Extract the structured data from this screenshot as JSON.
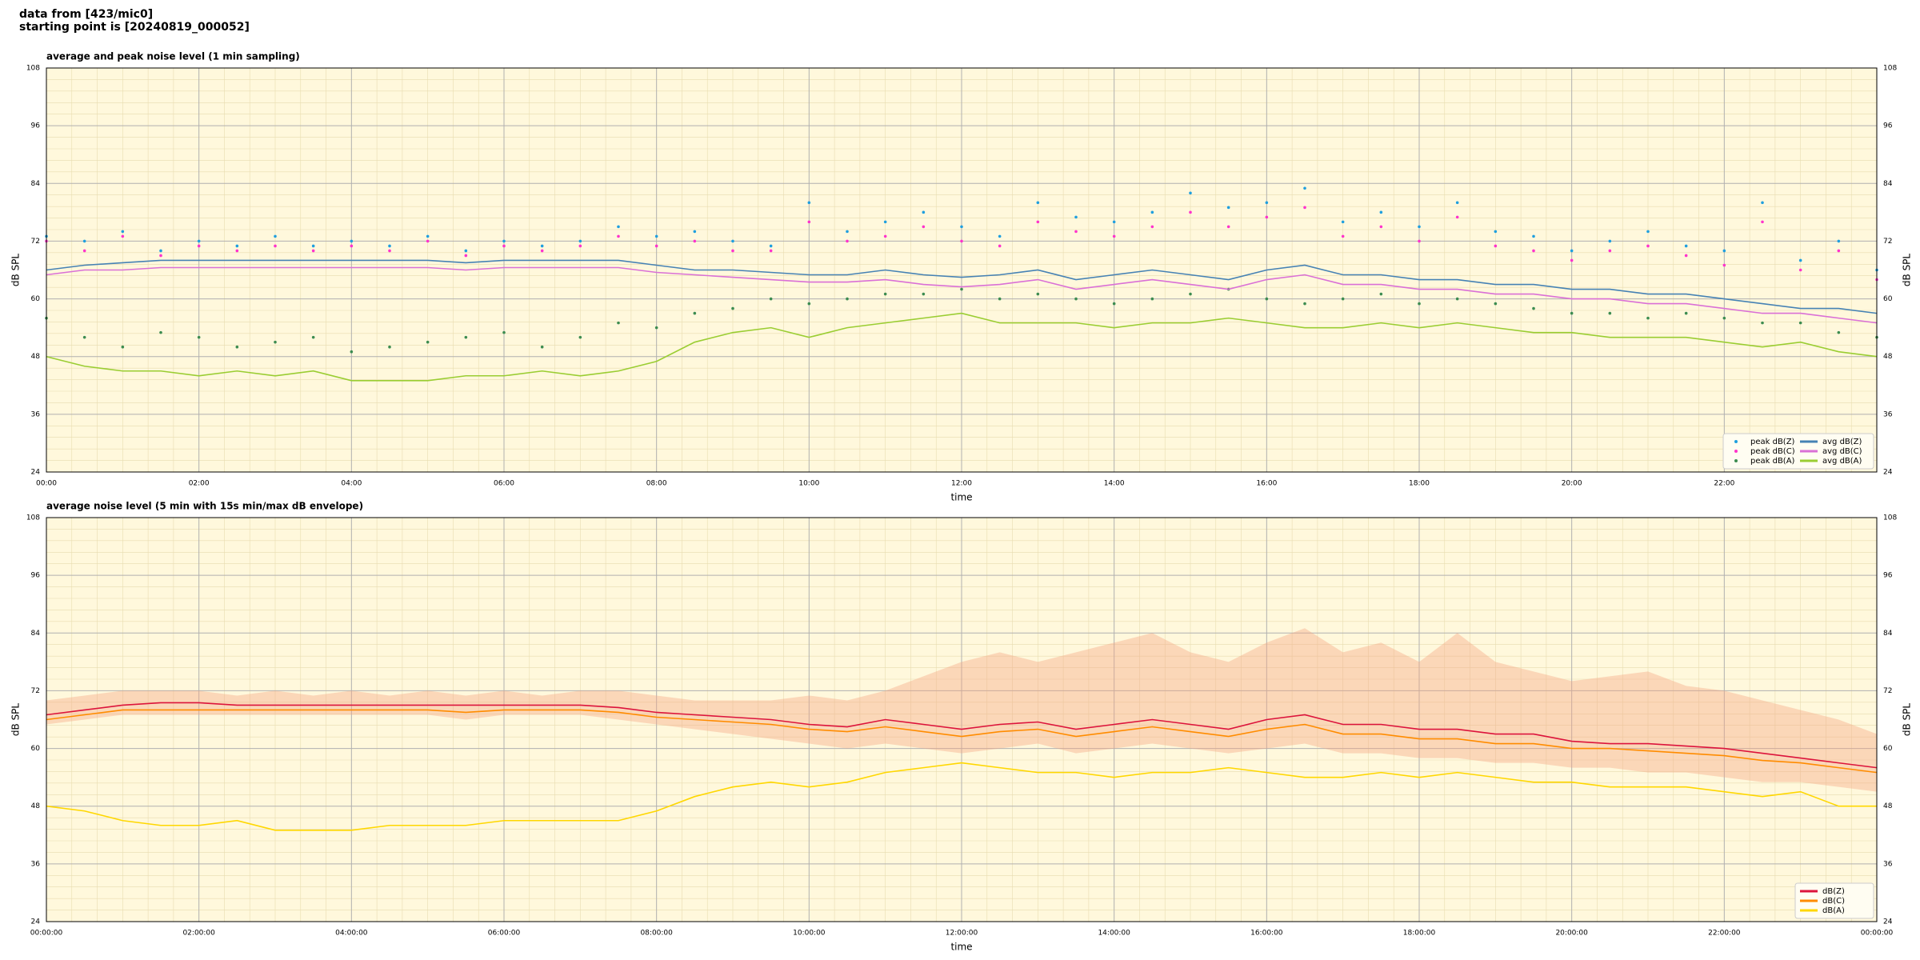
{
  "header": {
    "line1": "data from [423/mic0]",
    "line2": "starting point is [20240819_000052]"
  },
  "chart_data": [
    {
      "type": "line",
      "title": "average and peak noise level (1 min sampling)",
      "xlabel": "time",
      "ylabel": "dB SPL",
      "xlim": [
        0,
        24
      ],
      "ylim": [
        24,
        108
      ],
      "yticks": [
        24,
        36,
        48,
        60,
        72,
        84,
        96,
        108
      ],
      "xticks": [
        {
          "value": 0,
          "label": "00:00"
        },
        {
          "value": 2,
          "label": "02:00"
        },
        {
          "value": 4,
          "label": "04:00"
        },
        {
          "value": 6,
          "label": "06:00"
        },
        {
          "value": 8,
          "label": "08:00"
        },
        {
          "value": 10,
          "label": "10:00"
        },
        {
          "value": 12,
          "label": "12:00"
        },
        {
          "value": 14,
          "label": "14:00"
        },
        {
          "value": 16,
          "label": "16:00"
        },
        {
          "value": 18,
          "label": "18:00"
        },
        {
          "value": 20,
          "label": "20:00"
        },
        {
          "value": 22,
          "label": "22:00"
        }
      ],
      "grid": true,
      "legend": "lower right",
      "legend_columns": 2,
      "background": "#fff8dc",
      "x": [
        0,
        0.5,
        1,
        1.5,
        2,
        2.5,
        3,
        3.5,
        4,
        4.5,
        5,
        5.5,
        6,
        6.5,
        7,
        7.5,
        8,
        8.5,
        9,
        9.5,
        10,
        10.5,
        11,
        11.5,
        12,
        12.5,
        13,
        13.5,
        14,
        14.5,
        15,
        15.5,
        16,
        16.5,
        17,
        17.5,
        18,
        18.5,
        19,
        19.5,
        20,
        20.5,
        21,
        21.5,
        22,
        22.5,
        23,
        23.5,
        24
      ],
      "series": [
        {
          "name": "peak dB(Z)",
          "type": "scatter",
          "color": "#1f9fdf",
          "values": [
            73,
            72,
            74,
            70,
            72,
            71,
            73,
            71,
            72,
            71,
            73,
            70,
            72,
            71,
            72,
            75,
            73,
            74,
            72,
            71,
            80,
            74,
            76,
            78,
            75,
            73,
            80,
            77,
            76,
            78,
            82,
            79,
            80,
            83,
            76,
            78,
            75,
            80,
            74,
            73,
            70,
            72,
            74,
            71,
            70,
            80,
            68,
            72,
            66
          ]
        },
        {
          "name": "peak dB(C)",
          "type": "scatter",
          "color": "#ff33cc",
          "values": [
            72,
            70,
            73,
            69,
            71,
            70,
            71,
            70,
            71,
            70,
            72,
            69,
            71,
            70,
            71,
            73,
            71,
            72,
            70,
            70,
            76,
            72,
            73,
            75,
            72,
            71,
            76,
            74,
            73,
            75,
            78,
            75,
            77,
            79,
            73,
            75,
            72,
            77,
            71,
            70,
            68,
            70,
            71,
            69,
            67,
            76,
            66,
            70,
            64
          ]
        },
        {
          "name": "peak dB(A)",
          "type": "scatter",
          "color": "#3c8c50",
          "values": [
            56,
            52,
            50,
            53,
            52,
            50,
            51,
            52,
            49,
            50,
            51,
            52,
            53,
            50,
            52,
            55,
            54,
            57,
            58,
            60,
            59,
            60,
            61,
            61,
            62,
            60,
            61,
            60,
            59,
            60,
            61,
            62,
            60,
            59,
            60,
            61,
            59,
            60,
            59,
            58,
            57,
            57,
            56,
            57,
            56,
            55,
            55,
            53,
            52
          ]
        },
        {
          "name": "avg dB(Z)",
          "type": "line",
          "color": "#4682b4",
          "values": [
            66,
            67,
            67.5,
            68,
            68,
            68,
            68,
            68,
            68,
            68,
            68,
            67.5,
            68,
            68,
            68,
            68,
            67,
            66,
            66,
            65.5,
            65,
            65,
            66,
            65,
            64.5,
            65,
            66,
            64,
            65,
            66,
            65,
            64,
            66,
            67,
            65,
            65,
            64,
            64,
            63,
            63,
            62,
            62,
            61,
            61,
            60,
            59,
            58,
            58,
            57
          ]
        },
        {
          "name": "avg dB(C)",
          "type": "line",
          "color": "#da70d6",
          "values": [
            65,
            66,
            66,
            66.5,
            66.5,
            66.5,
            66.5,
            66.5,
            66.5,
            66.5,
            66.5,
            66,
            66.5,
            66.5,
            66.5,
            66.5,
            65.5,
            65,
            64.5,
            64,
            63.5,
            63.5,
            64,
            63,
            62.5,
            63,
            64,
            62,
            63,
            64,
            63,
            62,
            64,
            65,
            63,
            63,
            62,
            62,
            61,
            61,
            60,
            60,
            59,
            59,
            58,
            57,
            57,
            56,
            55
          ]
        },
        {
          "name": "avg dB(A)",
          "type": "line",
          "color": "#9acd32",
          "values": [
            48,
            46,
            45,
            45,
            44,
            45,
            44,
            45,
            43,
            43,
            43,
            44,
            44,
            45,
            44,
            45,
            47,
            51,
            53,
            54,
            52,
            54,
            55,
            56,
            57,
            55,
            55,
            55,
            54,
            55,
            55,
            56,
            55,
            54,
            54,
            55,
            54,
            55,
            54,
            53,
            53,
            52,
            52,
            52,
            51,
            50,
            51,
            49,
            48
          ]
        }
      ]
    },
    {
      "type": "line",
      "title": "average noise level (5 min with 15s min/max dB envelope)",
      "xlabel": "time",
      "ylabel": "dB SPL",
      "xlim": [
        0,
        24
      ],
      "ylim": [
        24,
        108
      ],
      "yticks": [
        24,
        36,
        48,
        60,
        72,
        84,
        96,
        108
      ],
      "xticks": [
        {
          "value": 0,
          "label": "00:00:00"
        },
        {
          "value": 2,
          "label": "02:00:00"
        },
        {
          "value": 4,
          "label": "04:00:00"
        },
        {
          "value": 6,
          "label": "06:00:00"
        },
        {
          "value": 8,
          "label": "08:00:00"
        },
        {
          "value": 10,
          "label": "10:00:00"
        },
        {
          "value": 12,
          "label": "12:00:00"
        },
        {
          "value": 14,
          "label": "14:00:00"
        },
        {
          "value": 16,
          "label": "16:00:00"
        },
        {
          "value": 18,
          "label": "18:00:00"
        },
        {
          "value": 20,
          "label": "20:00:00"
        },
        {
          "value": 22,
          "label": "22:00:00"
        },
        {
          "value": 24,
          "label": "00:00:00"
        }
      ],
      "grid": true,
      "legend": "lower right",
      "legend_columns": 1,
      "background": "#fff8dc",
      "x": [
        0,
        0.5,
        1,
        1.5,
        2,
        2.5,
        3,
        3.5,
        4,
        4.5,
        5,
        5.5,
        6,
        6.5,
        7,
        7.5,
        8,
        8.5,
        9,
        9.5,
        10,
        10.5,
        11,
        11.5,
        12,
        12.5,
        13,
        13.5,
        14,
        14.5,
        15,
        15.5,
        16,
        16.5,
        17,
        17.5,
        18,
        18.5,
        19,
        19.5,
        20,
        20.5,
        21,
        21.5,
        22,
        22.5,
        23,
        23.5,
        24
      ],
      "envelope": {
        "color": "#f4a582",
        "upper": [
          70,
          71,
          72,
          72,
          72,
          71,
          72,
          71,
          72,
          71,
          72,
          71,
          72,
          71,
          72,
          72,
          71,
          70,
          70,
          70,
          71,
          70,
          72,
          75,
          78,
          80,
          78,
          80,
          82,
          84,
          80,
          78,
          82,
          85,
          80,
          82,
          78,
          84,
          78,
          76,
          74,
          75,
          76,
          73,
          72,
          70,
          68,
          66,
          63
        ],
        "lower": [
          65,
          66,
          67,
          67,
          67,
          67,
          67,
          67,
          67,
          67,
          67,
          66,
          67,
          67,
          67,
          66,
          65,
          64,
          63,
          62,
          61,
          60,
          61,
          60,
          59,
          60,
          61,
          59,
          60,
          61,
          60,
          59,
          60,
          61,
          59,
          59,
          58,
          58,
          57,
          57,
          56,
          56,
          55,
          55,
          54,
          53,
          53,
          52,
          51
        ]
      },
      "series": [
        {
          "name": "dB(Z)",
          "type": "line",
          "color": "#dc143c",
          "values": [
            67,
            68,
            69,
            69.5,
            69.5,
            69,
            69,
            69,
            69,
            69,
            69,
            69,
            69,
            69,
            69,
            68.5,
            67.5,
            67,
            66.5,
            66,
            65,
            64.5,
            66,
            65,
            64,
            65,
            65.5,
            64,
            65,
            66,
            65,
            64,
            66,
            67,
            65,
            65,
            64,
            64,
            63,
            63,
            61.5,
            61,
            61,
            60.5,
            60,
            59,
            58,
            57,
            56
          ]
        },
        {
          "name": "dB(C)",
          "type": "line",
          "color": "#ff8c00",
          "values": [
            66,
            67,
            68,
            68,
            68,
            68,
            68,
            68,
            68,
            68,
            68,
            67.5,
            68,
            68,
            68,
            67.5,
            66.5,
            66,
            65.5,
            65,
            64,
            63.5,
            64.5,
            63.5,
            62.5,
            63.5,
            64,
            62.5,
            63.5,
            64.5,
            63.5,
            62.5,
            64,
            65,
            63,
            63,
            62,
            62,
            61,
            61,
            60,
            60,
            59.5,
            59,
            58.5,
            57.5,
            57,
            56,
            55
          ]
        },
        {
          "name": "dB(A)",
          "type": "line",
          "color": "#ffd700",
          "values": [
            48,
            47,
            45,
            44,
            44,
            45,
            43,
            43,
            43,
            44,
            44,
            44,
            45,
            45,
            45,
            45,
            47,
            50,
            52,
            53,
            52,
            53,
            55,
            56,
            57,
            56,
            55,
            55,
            54,
            55,
            55,
            56,
            55,
            54,
            54,
            55,
            54,
            55,
            54,
            53,
            53,
            52,
            52,
            52,
            51,
            50,
            51,
            48,
            48
          ]
        }
      ]
    }
  ]
}
